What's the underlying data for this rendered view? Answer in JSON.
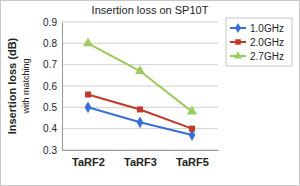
{
  "chart_data": {
    "type": "line",
    "title": "Insertion loss on SP10T",
    "y_label": [
      "Insertion loss (dB)",
      "with matching"
    ],
    "categories": [
      "TaRF2",
      "TaRF3",
      "TaRF5"
    ],
    "series": [
      {
        "name": "1.0GHz",
        "color": "#3a6fd6",
        "marker": "diamond",
        "values": [
          0.5,
          0.43,
          0.37
        ]
      },
      {
        "name": "2.0GHz",
        "color": "#c0392b",
        "marker": "square",
        "values": [
          0.56,
          0.49,
          0.4
        ]
      },
      {
        "name": "2.7GHz",
        "color": "#9bcb5a",
        "marker": "triangle",
        "values": [
          0.8,
          0.67,
          0.48
        ]
      }
    ],
    "ylim": [
      0.3,
      0.9
    ],
    "yticks": [
      0.3,
      0.4,
      0.5,
      0.6,
      0.7,
      0.8,
      0.9
    ],
    "grid": true,
    "legend": "right"
  }
}
